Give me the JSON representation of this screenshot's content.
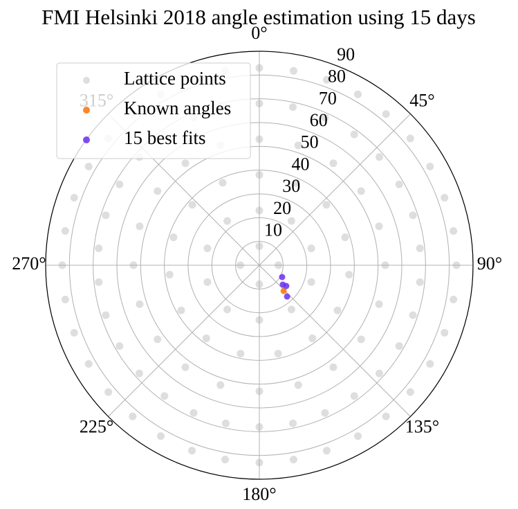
{
  "chart_data": {
    "type": "polar_scatter",
    "title": "FMI Helsinki 2018 angle estimation using 15 days",
    "rlim": [
      0,
      90
    ],
    "rticks": [
      10,
      20,
      30,
      40,
      50,
      60,
      70,
      80,
      90
    ],
    "thetaticks": [
      {
        "value": 0,
        "label": "0°"
      },
      {
        "value": 45,
        "label": "45°"
      },
      {
        "value": 90,
        "label": "90°"
      },
      {
        "value": 135,
        "label": "135°"
      },
      {
        "value": 180,
        "label": "180°"
      },
      {
        "value": 225,
        "label": "225°"
      },
      {
        "value": 270,
        "label": "270°"
      },
      {
        "value": 315,
        "label": "315°"
      }
    ],
    "theta_zero": "N",
    "theta_direction": "clockwise",
    "grid": true,
    "legend_loc": "upper left",
    "series": [
      {
        "name": "Lattice points",
        "color": "#d3d3d3",
        "theta": [
          0,
          90,
          180,
          270,
          0,
          36,
          72,
          108,
          144,
          180,
          216,
          252,
          288,
          324,
          0,
          24,
          48,
          72,
          96,
          120,
          144,
          168,
          192,
          216,
          240,
          264,
          288,
          312,
          336,
          0,
          18,
          36,
          54,
          72,
          90,
          108,
          126,
          144,
          162,
          180,
          198,
          216,
          234,
          252,
          270,
          288,
          306,
          324,
          342,
          0,
          12,
          24,
          36,
          48,
          60,
          72,
          84,
          96,
          108,
          120,
          132,
          144,
          156,
          168,
          180,
          192,
          204,
          216,
          228,
          240,
          252,
          264,
          276,
          288,
          300,
          312,
          324,
          336,
          348,
          0,
          10,
          20,
          30,
          40,
          50,
          60,
          70,
          80,
          90,
          100,
          110,
          120,
          130,
          140,
          150,
          160,
          170,
          180,
          190,
          200,
          210,
          220,
          230,
          240,
          250,
          260,
          270,
          280,
          290,
          300,
          310,
          320,
          330,
          340,
          350
        ],
        "r": [
          8,
          8,
          8,
          8,
          23,
          23,
          23,
          23,
          23,
          23,
          23,
          23,
          23,
          23,
          38,
          38,
          38,
          38,
          38,
          38,
          38,
          38,
          38,
          38,
          38,
          38,
          38,
          38,
          38,
          53,
          53,
          53,
          53,
          53,
          53,
          53,
          53,
          53,
          53,
          53,
          53,
          53,
          53,
          53,
          53,
          53,
          53,
          53,
          53,
          68,
          68,
          68,
          68,
          68,
          68,
          68,
          68,
          68,
          68,
          68,
          68,
          68,
          68,
          68,
          68,
          68,
          68,
          68,
          68,
          68,
          68,
          68,
          68,
          68,
          68,
          68,
          68,
          68,
          68,
          83,
          83,
          83,
          83,
          83,
          83,
          83,
          83,
          83,
          83,
          83,
          83,
          83,
          83,
          83,
          83,
          83,
          83,
          83,
          83,
          83,
          83,
          83,
          83,
          83,
          83,
          83,
          83,
          83,
          83,
          83,
          83,
          83,
          83,
          83,
          83
        ]
      },
      {
        "name": "Known angles",
        "color": "#f97306",
        "theta": [
          136.6
        ],
        "r": [
          14.9
        ]
      },
      {
        "name": "15 best fits",
        "color": "#6a2ef0",
        "theta": [
          117.3,
          127.6,
          129.5,
          138.4
        ],
        "r": [
          10.8,
          14.3,
          12.8,
          17.6
        ]
      }
    ]
  }
}
